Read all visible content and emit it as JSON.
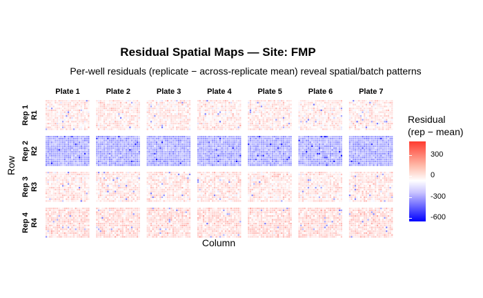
{
  "chart_data": {
    "type": "heatmap",
    "title": "Residual Spatial Maps — Site: FMP",
    "subtitle": "Per-well residuals (replicate − across-replicate mean) reveal spatial/batch patterns",
    "xlabel": "Column",
    "ylabel": "Row",
    "facet_columns": [
      "Plate 1",
      "Plate 2",
      "Plate 3",
      "Plate 4",
      "Plate 5",
      "Plate 6",
      "Plate 7"
    ],
    "facet_rows": [
      {
        "label": "Rep 1",
        "sub": "R1",
        "mean_residual": 60
      },
      {
        "label": "Rep 2",
        "sub": "R2",
        "mean_residual": -230
      },
      {
        "label": "Rep 3",
        "sub": "R3",
        "mean_residual": 70
      },
      {
        "label": "Rep 4",
        "sub": "R4",
        "mean_residual": 100
      }
    ],
    "grid": {
      "rows": 16,
      "cols": 24
    },
    "legend": {
      "title_line1": "Residual",
      "title_line2": "(rep − mean)",
      "ticks": [
        300,
        0,
        -300,
        -600
      ],
      "tick_labels": [
        "300",
        "0",
        "-300",
        "-600"
      ],
      "range": [
        -650,
        500
      ],
      "low_color": "#0000ff",
      "mid_color": "#ffffff",
      "high_color": "#ff3b2f"
    }
  }
}
